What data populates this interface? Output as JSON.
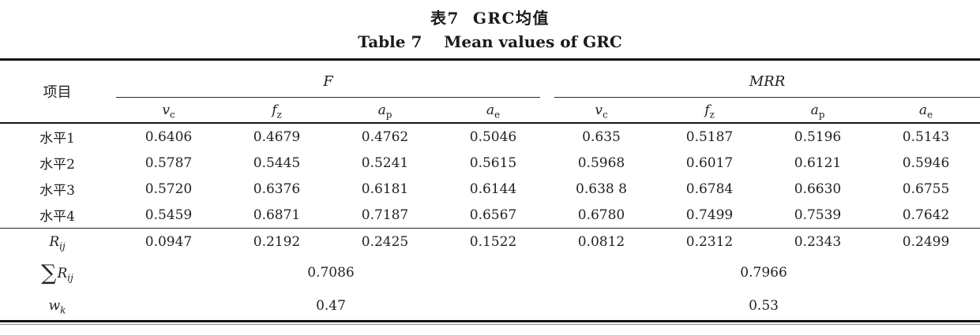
{
  "title_cn": "表7  GRC均值",
  "title_en": "Table 7    Mean values of GRC",
  "table": {
    "item_header": "项目",
    "groups": [
      {
        "label": "F"
      },
      {
        "label": "MRR"
      }
    ],
    "columns": [
      {
        "base": "v",
        "sub": "c"
      },
      {
        "base": "f",
        "sub": "z"
      },
      {
        "base": "a",
        "sub": "p"
      },
      {
        "base": "a",
        "sub": "e"
      }
    ],
    "rows": [
      {
        "label": "水平1",
        "values": [
          "0.6406",
          "0.4679",
          "0.4762",
          "0.5046",
          "0.635",
          "0.5187",
          "0.5196",
          "0.5143"
        ]
      },
      {
        "label": "水平2",
        "values": [
          "0.5787",
          "0.5445",
          "0.5241",
          "0.5615",
          "0.5968",
          "0.6017",
          "0.6121",
          "0.5946"
        ]
      },
      {
        "label": "水平3",
        "values": [
          "0.5720",
          "0.6376",
          "0.6181",
          "0.6144",
          "0.638 8",
          "0.6784",
          "0.6630",
          "0.6755"
        ]
      },
      {
        "label": "水平4",
        "values": [
          "0.5459",
          "0.6871",
          "0.7187",
          "0.6567",
          "0.6780",
          "0.7499",
          "0.7539",
          "0.7642"
        ]
      }
    ],
    "range_row": {
      "label_base": "R",
      "label_sub": "ij",
      "values": [
        "0.0947",
        "0.2192",
        "0.2425",
        "0.1522",
        "0.0812",
        "0.2312",
        "0.2343",
        "0.2499"
      ]
    },
    "sum_row": {
      "symbol": "∑",
      "label_base": "R",
      "label_sub": "ij",
      "f_value": "0.7086",
      "mrr_value": "0.7966"
    },
    "weight_row": {
      "label_base": "w",
      "label_sub": "k",
      "f_value": "0.47",
      "mrr_value": "0.53"
    }
  }
}
